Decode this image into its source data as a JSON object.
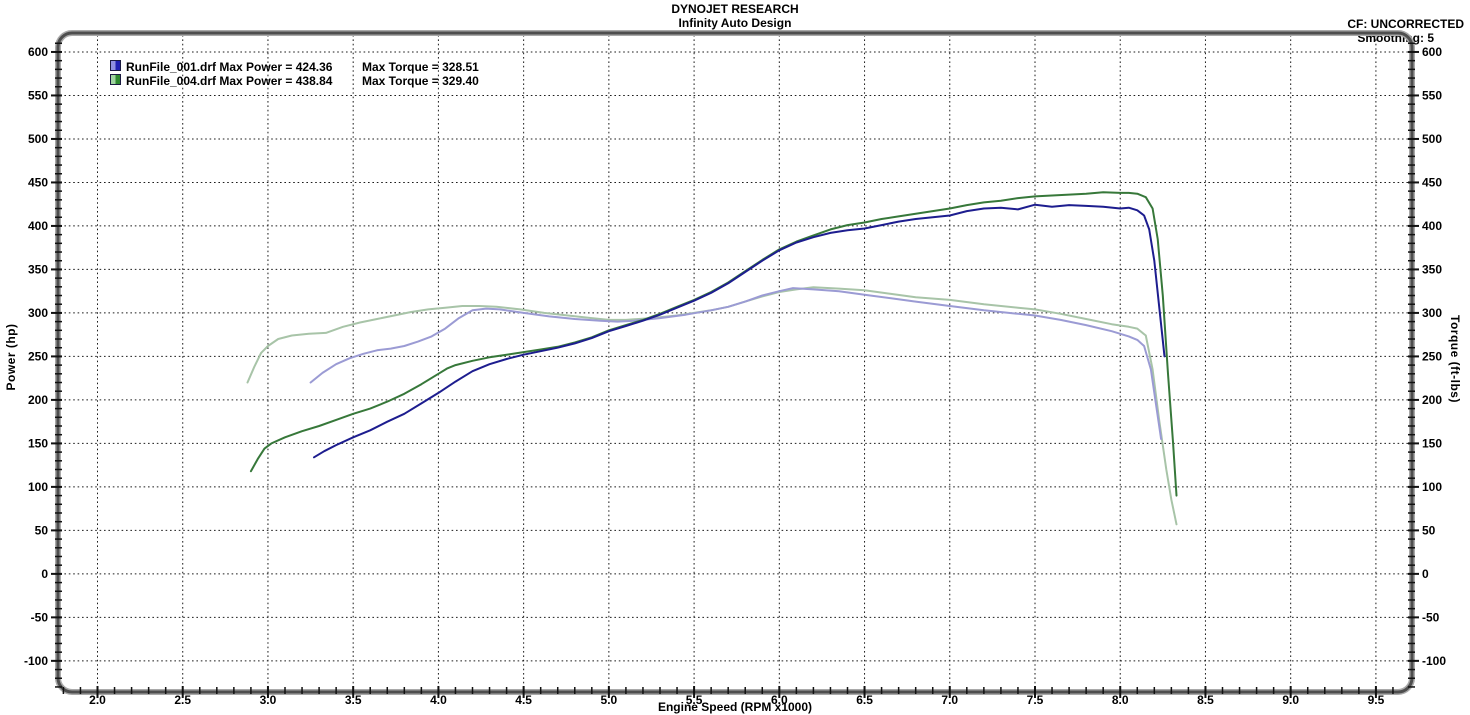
{
  "header": {
    "title": "DYNOJET RESEARCH",
    "subtitle": "Infinity Auto Design",
    "cf": "CF: UNCORRECTED",
    "smoothing": "Smoothing: 5"
  },
  "legend": {
    "rows": [
      {
        "file": "RunFile_001.drf",
        "power": "Max Power = 424.36",
        "torque": "Max Torque = 328.51",
        "swatch_dark": "#2020b0",
        "swatch_light": "#8f8fe0"
      },
      {
        "file": "RunFile_004.drf",
        "power": "Max Power = 438.84",
        "torque": "Max Torque = 329.40",
        "swatch_dark": "#2f8a2f",
        "swatch_light": "#9fd49f"
      }
    ]
  },
  "axes": {
    "left_title": "Power (hp)",
    "right_title": "Torque (ft-lbs)",
    "x_title": "Engine Speed (RPM x1000)"
  },
  "chart_data": {
    "type": "line",
    "title": "DYNOJET RESEARCH",
    "subtitle": "Infinity Auto Design",
    "xlabel": "Engine Speed (RPM x1000)",
    "ylabel_left": "Power (hp)",
    "ylabel_right": "Torque (ft-lbs)",
    "grid": "dotted-black-on-majors",
    "legend_position": "top-left-inside",
    "xlim": [
      1.78,
      9.7
    ],
    "ylim": [
      -133.5,
      619.5
    ],
    "x_major_ticks": [
      2.0,
      2.5,
      3.0,
      3.5,
      4.0,
      4.5,
      5.0,
      5.5,
      6.0,
      6.5,
      7.0,
      7.5,
      8.0,
      8.5,
      9.0,
      9.5
    ],
    "y_major_ticks": [
      600,
      550,
      500,
      450,
      400,
      350,
      300,
      250,
      200,
      150,
      100,
      50,
      0,
      -50,
      -100
    ],
    "x_minor": {
      "start": 1.8,
      "end": 9.6,
      "step": 0.1
    },
    "y_minor": {
      "start": -130,
      "end": 610,
      "step": 10
    },
    "grid_color": "#1c1c1c",
    "series": [
      {
        "name": "RunFile_004 Torque (ft-lbs)",
        "color": "#a8c4a8",
        "width": 2,
        "axis": "right",
        "points": [
          [
            2.88,
            220
          ],
          [
            2.92,
            238
          ],
          [
            2.96,
            254
          ],
          [
            3.0,
            262
          ],
          [
            3.06,
            270
          ],
          [
            3.14,
            274
          ],
          [
            3.24,
            276
          ],
          [
            3.34,
            277
          ],
          [
            3.44,
            284
          ],
          [
            3.54,
            289
          ],
          [
            3.64,
            293
          ],
          [
            3.74,
            297
          ],
          [
            3.84,
            301
          ],
          [
            3.94,
            304
          ],
          [
            4.04,
            306
          ],
          [
            4.14,
            308
          ],
          [
            4.24,
            308
          ],
          [
            4.34,
            307
          ],
          [
            4.48,
            304
          ],
          [
            4.62,
            300
          ],
          [
            4.76,
            297
          ],
          [
            4.9,
            294
          ],
          [
            5.0,
            292
          ],
          [
            5.1,
            292
          ],
          [
            5.25,
            294
          ],
          [
            5.4,
            297
          ],
          [
            5.5,
            300
          ],
          [
            5.6,
            303
          ],
          [
            5.7,
            307
          ],
          [
            5.8,
            313
          ],
          [
            5.9,
            319
          ],
          [
            6.0,
            324
          ],
          [
            6.1,
            327
          ],
          [
            6.2,
            329.4
          ],
          [
            6.35,
            328
          ],
          [
            6.5,
            326
          ],
          [
            6.65,
            322
          ],
          [
            6.8,
            318
          ],
          [
            7.0,
            315
          ],
          [
            7.2,
            310
          ],
          [
            7.4,
            306
          ],
          [
            7.5,
            304
          ],
          [
            7.65,
            299
          ],
          [
            7.8,
            293
          ],
          [
            7.95,
            287
          ],
          [
            8.05,
            284
          ],
          [
            8.1,
            282
          ],
          [
            8.15,
            274
          ],
          [
            8.19,
            235
          ],
          [
            8.23,
            175
          ],
          [
            8.27,
            120
          ],
          [
            8.3,
            85
          ],
          [
            8.33,
            57
          ]
        ]
      },
      {
        "name": "RunFile_001 Torque (ft-lbs)",
        "color": "#9b9bd4",
        "width": 2,
        "axis": "right",
        "points": [
          [
            3.25,
            220
          ],
          [
            3.32,
            231
          ],
          [
            3.4,
            241
          ],
          [
            3.48,
            248
          ],
          [
            3.56,
            253
          ],
          [
            3.64,
            257
          ],
          [
            3.72,
            259
          ],
          [
            3.8,
            262
          ],
          [
            3.88,
            267
          ],
          [
            3.96,
            273
          ],
          [
            4.04,
            282
          ],
          [
            4.12,
            294
          ],
          [
            4.2,
            303
          ],
          [
            4.28,
            305
          ],
          [
            4.36,
            304
          ],
          [
            4.5,
            300
          ],
          [
            4.65,
            296
          ],
          [
            4.8,
            293
          ],
          [
            4.95,
            291
          ],
          [
            5.05,
            290
          ],
          [
            5.15,
            291
          ],
          [
            5.3,
            294
          ],
          [
            5.45,
            298
          ],
          [
            5.6,
            303
          ],
          [
            5.7,
            307
          ],
          [
            5.8,
            313
          ],
          [
            5.9,
            320
          ],
          [
            6.0,
            325
          ],
          [
            6.08,
            328.5
          ],
          [
            6.2,
            327
          ],
          [
            6.35,
            325
          ],
          [
            6.5,
            321
          ],
          [
            6.65,
            317
          ],
          [
            6.8,
            313
          ],
          [
            7.0,
            308
          ],
          [
            7.2,
            303
          ],
          [
            7.4,
            299
          ],
          [
            7.5,
            297
          ],
          [
            7.65,
            292
          ],
          [
            7.8,
            286
          ],
          [
            7.95,
            279
          ],
          [
            8.05,
            273
          ],
          [
            8.1,
            269
          ],
          [
            8.14,
            262
          ],
          [
            8.18,
            235
          ],
          [
            8.21,
            195
          ],
          [
            8.24,
            155
          ]
        ]
      },
      {
        "name": "RunFile_004 Power (hp)",
        "color": "#37783a",
        "width": 2,
        "axis": "left",
        "points": [
          [
            2.9,
            118
          ],
          [
            2.94,
            132
          ],
          [
            2.98,
            144
          ],
          [
            3.02,
            150
          ],
          [
            3.1,
            157
          ],
          [
            3.2,
            164
          ],
          [
            3.3,
            170
          ],
          [
            3.4,
            177
          ],
          [
            3.5,
            184
          ],
          [
            3.6,
            190
          ],
          [
            3.7,
            198
          ],
          [
            3.8,
            207
          ],
          [
            3.9,
            218
          ],
          [
            4.0,
            230
          ],
          [
            4.05,
            236
          ],
          [
            4.1,
            240
          ],
          [
            4.2,
            245
          ],
          [
            4.3,
            249
          ],
          [
            4.4,
            252
          ],
          [
            4.5,
            255
          ],
          [
            4.6,
            258
          ],
          [
            4.7,
            261
          ],
          [
            4.8,
            266
          ],
          [
            4.9,
            272
          ],
          [
            5.0,
            280
          ],
          [
            5.1,
            286
          ],
          [
            5.2,
            292
          ],
          [
            5.3,
            299
          ],
          [
            5.4,
            307
          ],
          [
            5.5,
            315
          ],
          [
            5.6,
            324
          ],
          [
            5.7,
            335
          ],
          [
            5.8,
            348
          ],
          [
            5.9,
            361
          ],
          [
            6.0,
            373
          ],
          [
            6.1,
            382
          ],
          [
            6.2,
            389
          ],
          [
            6.3,
            396
          ],
          [
            6.4,
            401
          ],
          [
            6.5,
            404
          ],
          [
            6.6,
            408
          ],
          [
            6.7,
            411
          ],
          [
            6.8,
            414
          ],
          [
            6.9,
            417
          ],
          [
            7.0,
            420
          ],
          [
            7.1,
            424
          ],
          [
            7.2,
            427
          ],
          [
            7.3,
            429
          ],
          [
            7.4,
            432
          ],
          [
            7.5,
            434
          ],
          [
            7.6,
            435
          ],
          [
            7.7,
            436
          ],
          [
            7.8,
            437
          ],
          [
            7.9,
            438.8
          ],
          [
            8.0,
            438
          ],
          [
            8.05,
            438
          ],
          [
            8.1,
            437
          ],
          [
            8.15,
            433
          ],
          [
            8.19,
            420
          ],
          [
            8.22,
            385
          ],
          [
            8.25,
            320
          ],
          [
            8.28,
            230
          ],
          [
            8.31,
            150
          ],
          [
            8.33,
            90
          ]
        ]
      },
      {
        "name": "RunFile_001 Power (hp)",
        "color": "#1d1d8f",
        "width": 2,
        "axis": "left",
        "points": [
          [
            3.27,
            134
          ],
          [
            3.33,
            141
          ],
          [
            3.4,
            148
          ],
          [
            3.5,
            157
          ],
          [
            3.6,
            165
          ],
          [
            3.7,
            175
          ],
          [
            3.8,
            184
          ],
          [
            3.9,
            196
          ],
          [
            4.0,
            208
          ],
          [
            4.1,
            221
          ],
          [
            4.2,
            233
          ],
          [
            4.3,
            241
          ],
          [
            4.4,
            247
          ],
          [
            4.5,
            252
          ],
          [
            4.6,
            256
          ],
          [
            4.7,
            260
          ],
          [
            4.8,
            265
          ],
          [
            4.9,
            271
          ],
          [
            5.0,
            279
          ],
          [
            5.1,
            285
          ],
          [
            5.2,
            291
          ],
          [
            5.3,
            298
          ],
          [
            5.4,
            306
          ],
          [
            5.5,
            314
          ],
          [
            5.6,
            323
          ],
          [
            5.7,
            334
          ],
          [
            5.8,
            347
          ],
          [
            5.9,
            360
          ],
          [
            6.0,
            372
          ],
          [
            6.1,
            381
          ],
          [
            6.2,
            387
          ],
          [
            6.3,
            392
          ],
          [
            6.4,
            395
          ],
          [
            6.5,
            397
          ],
          [
            6.6,
            401
          ],
          [
            6.7,
            405
          ],
          [
            6.8,
            408
          ],
          [
            6.9,
            410
          ],
          [
            7.0,
            412
          ],
          [
            7.1,
            417
          ],
          [
            7.2,
            420
          ],
          [
            7.3,
            421
          ],
          [
            7.4,
            419
          ],
          [
            7.5,
            424.4
          ],
          [
            7.6,
            422
          ],
          [
            7.7,
            424
          ],
          [
            7.8,
            423
          ],
          [
            7.9,
            422
          ],
          [
            8.0,
            420
          ],
          [
            8.05,
            421
          ],
          [
            8.1,
            418
          ],
          [
            8.14,
            412
          ],
          [
            8.17,
            396
          ],
          [
            8.2,
            360
          ],
          [
            8.23,
            305
          ],
          [
            8.26,
            250
          ]
        ]
      }
    ]
  }
}
